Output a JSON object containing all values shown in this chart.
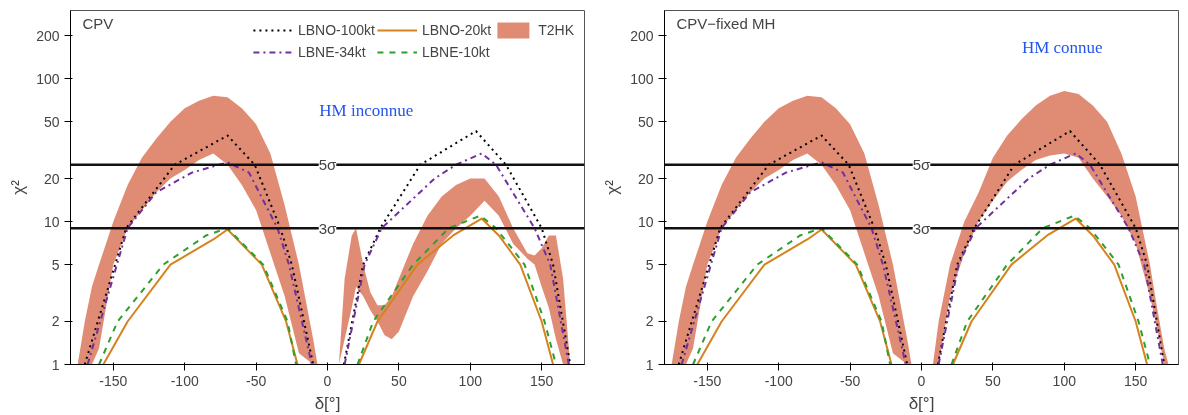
{
  "chart_data": [
    {
      "type": "line",
      "title": "CPV",
      "xlabel": "δ[°]",
      "ylabel": "χ²",
      "log": "y",
      "xlim": [
        -180,
        180
      ],
      "ylim": [
        1,
        300
      ],
      "xticks": [
        -150,
        -100,
        -50,
        0,
        50,
        100,
        150
      ],
      "yticks": [
        1,
        2,
        5,
        10,
        20,
        50,
        100,
        200
      ],
      "grid": false,
      "legend": "top right",
      "annotations": [
        "HM inconnue"
      ],
      "ref_lines": [
        {
          "axis": "y",
          "value": 25,
          "label": "5σ"
        },
        {
          "axis": "y",
          "value": 9,
          "label": "3σ"
        }
      ],
      "series": [
        {
          "name": "T2HK",
          "color": "#e08c74",
          "x": [
            -175,
            -170,
            -165,
            -160,
            -150,
            -140,
            -130,
            -120,
            -110,
            -100,
            -90,
            -80,
            -70,
            -60,
            -50,
            -40,
            -30,
            -20,
            -10,
            -7
          ],
          "values": [
            null,
            null,
            null,
            null,
            null,
            null,
            null,
            null,
            null,
            null,
            null,
            null,
            null,
            null,
            null,
            null,
            null,
            null,
            null,
            null
          ],
          "lower": [
            1,
            1,
            1,
            1.3,
            5,
            9,
            12,
            16,
            20,
            23,
            27,
            30,
            25,
            18,
            12,
            6,
            3,
            1.2,
            1,
            1
          ],
          "upper": [
            1,
            2,
            3.5,
            5,
            10,
            18,
            28,
            38,
            50,
            62,
            70,
            76,
            74,
            62,
            48,
            30,
            13,
            5,
            1.5,
            1
          ]
        },
        {
          "color": "#e08c74",
          "x": [
            8,
            12,
            17,
            20,
            25,
            30,
            35,
            40,
            45,
            50,
            60,
            70,
            80,
            90,
            100,
            110,
            120,
            130,
            140,
            145,
            150,
            155,
            160,
            165,
            170
          ],
          "values": [
            null,
            null,
            null,
            null,
            null,
            null,
            null,
            null,
            null,
            null,
            null,
            null,
            null,
            null,
            null,
            null,
            null,
            null,
            null,
            null,
            null,
            null,
            null,
            null,
            null
          ],
          "lower": [
            1,
            1.5,
            2.5,
            3.5,
            3,
            2.4,
            2,
            1.6,
            1.5,
            1.7,
            3,
            4.5,
            7,
            9,
            11,
            14,
            11,
            7,
            5.5,
            5,
            3.5,
            2.5,
            1.5,
            1,
            1
          ],
          "upper": [
            1,
            4,
            8,
            9,
            5,
            3.2,
            2.6,
            2.6,
            3,
            4,
            7,
            11,
            15,
            18,
            20,
            20,
            15,
            9,
            6,
            5.8,
            6.5,
            8,
            8,
            4,
            1
          ]
        },
        {
          "name": "LBNO-100kt",
          "color": "#000000",
          "line_style": "dotted",
          "x": [
            -170,
            -141,
            -107,
            -70,
            -51,
            -33,
            -25,
            -10,
            null,
            11.5,
            25,
            37,
            65,
            104,
            125,
            150,
            158,
            170
          ],
          "values": [
            1,
            9,
            25,
            40,
            25,
            9,
            5,
            1,
            null,
            1,
            5,
            9,
            25,
            43,
            25,
            9,
            5,
            1
          ]
        },
        {
          "name": "LBNE-34kt",
          "color": "#7030a0",
          "line_style": "dashdot",
          "x": [
            -168,
            -140,
            -120,
            -95,
            -70,
            -55,
            -35,
            -27,
            -11,
            null,
            12,
            26,
            38,
            75,
            90,
            108,
            118,
            145,
            156,
            169
          ],
          "values": [
            1,
            9,
            16,
            22,
            26,
            22,
            9,
            5,
            1,
            null,
            1,
            5,
            9,
            20,
            25,
            30,
            25,
            9,
            5,
            1
          ]
        },
        {
          "name": "LBNO-20kt",
          "color": "#d4831e",
          "line_style": "solid",
          "x": [
            -157,
            -140,
            -110,
            -80,
            -70,
            -46,
            -29,
            -21,
            null,
            22,
            35,
            63,
            88,
            108,
            120,
            135,
            150,
            158
          ],
          "values": [
            1,
            2,
            5,
            7.5,
            8.8,
            5,
            2,
            1,
            null,
            1,
            2,
            5,
            8,
            10.5,
            8,
            5,
            2,
            1
          ]
        },
        {
          "name": "LBNE-10kt",
          "color": "#2ca02c",
          "line_style": "dashed",
          "x": [
            -160,
            -147,
            -115,
            -85,
            -70,
            -45,
            -28,
            -22,
            null,
            21,
            32,
            60,
            85,
            107,
            118,
            138,
            152,
            160
          ],
          "values": [
            1,
            2,
            5,
            8,
            9,
            5,
            2,
            1,
            null,
            1,
            2,
            5,
            9,
            11,
            9,
            5,
            2,
            1
          ]
        }
      ]
    },
    {
      "type": "line",
      "title": "CPV−fixed MH",
      "xlabel": "δ[°]",
      "ylabel": "χ²",
      "log": "y",
      "xlim": [
        -180,
        180
      ],
      "ylim": [
        1,
        300
      ],
      "xticks": [
        -150,
        -100,
        -50,
        0,
        50,
        100,
        150
      ],
      "yticks": [
        1,
        2,
        5,
        10,
        20,
        50,
        100,
        200
      ],
      "grid": false,
      "legend": false,
      "annotations": [
        "HM connue"
      ],
      "ref_lines": [
        {
          "axis": "y",
          "value": 25,
          "label": "5σ"
        },
        {
          "axis": "y",
          "value": 9,
          "label": "3σ"
        }
      ],
      "series": [
        {
          "color": "#e08c74",
          "x": [
            -175,
            -170,
            -165,
            -160,
            -150,
            -140,
            -130,
            -120,
            -110,
            -100,
            -90,
            -80,
            -70,
            -60,
            -50,
            -40,
            -30,
            -20,
            -10,
            -7
          ],
          "values": [
            null,
            null,
            null,
            null,
            null,
            null,
            null,
            null,
            null,
            null,
            null,
            null,
            null,
            null,
            null,
            null,
            null,
            null,
            null,
            null
          ],
          "lower": [
            1,
            1,
            1,
            1.3,
            5,
            9,
            12,
            16,
            20,
            23,
            27,
            30,
            25,
            18,
            12,
            6,
            3,
            1.2,
            1,
            1
          ],
          "upper": [
            1,
            2,
            3.5,
            5,
            10,
            18,
            28,
            38,
            50,
            62,
            70,
            76,
            74,
            62,
            48,
            30,
            13,
            5,
            1.5,
            1
          ]
        },
        {
          "color": "#e08c74",
          "x": [
            8,
            12,
            20,
            30,
            40,
            50,
            60,
            70,
            80,
            90,
            100,
            110,
            120,
            130,
            140,
            150,
            160,
            165,
            170,
            173
          ],
          "values": [
            null,
            null,
            null,
            null,
            null,
            null,
            null,
            null,
            null,
            null,
            null,
            null,
            null,
            null,
            null,
            null,
            null,
            null,
            null,
            null
          ],
          "lower": [
            1,
            1,
            3,
            6,
            10,
            14,
            19,
            23,
            27,
            29,
            30,
            28,
            20,
            15,
            11,
            7,
            3,
            1.8,
            1,
            1
          ],
          "upper": [
            1,
            2,
            5,
            10,
            16,
            28,
            40,
            52,
            65,
            76,
            82,
            78,
            65,
            50,
            30,
            15,
            5,
            2.5,
            1.3,
            1
          ]
        },
        {
          "color": "#000000",
          "line_style": "dotted",
          "x": [
            -170,
            -141,
            -107,
            -70,
            -51,
            -33,
            -25,
            -10,
            null,
            11.5,
            25,
            37,
            65,
            104,
            125,
            150,
            158,
            170
          ],
          "values": [
            1,
            9,
            25,
            40,
            25,
            9,
            5,
            1,
            null,
            1,
            5,
            9,
            25,
            43,
            25,
            9,
            5,
            1
          ]
        },
        {
          "color": "#7030a0",
          "line_style": "dashdot",
          "x": [
            -168,
            -140,
            -120,
            -95,
            -70,
            -55,
            -35,
            -27,
            -11,
            null,
            12,
            26,
            38,
            75,
            90,
            108,
            118,
            145,
            156,
            169
          ],
          "values": [
            1,
            9,
            16,
            22,
            26,
            22,
            9,
            5,
            1,
            null,
            1,
            5,
            9,
            20,
            25,
            30,
            25,
            9,
            5,
            1
          ]
        },
        {
          "color": "#d4831e",
          "line_style": "solid",
          "x": [
            -157,
            -140,
            -110,
            -80,
            -70,
            -46,
            -29,
            -21,
            null,
            22,
            35,
            63,
            88,
            108,
            120,
            135,
            150,
            158
          ],
          "values": [
            1,
            2,
            5,
            7.5,
            8.8,
            5,
            2,
            1,
            null,
            1,
            2,
            5,
            8,
            10.5,
            8,
            5,
            2,
            1
          ]
        },
        {
          "color": "#2ca02c",
          "line_style": "dashed",
          "x": [
            -160,
            -147,
            -115,
            -85,
            -70,
            -45,
            -28,
            -22,
            null,
            21,
            32,
            60,
            85,
            107,
            118,
            138,
            152,
            160
          ],
          "values": [
            1,
            2,
            5,
            8,
            9,
            5,
            2,
            1,
            null,
            1,
            2,
            5,
            9,
            11,
            9,
            5,
            2,
            1
          ]
        }
      ]
    }
  ]
}
